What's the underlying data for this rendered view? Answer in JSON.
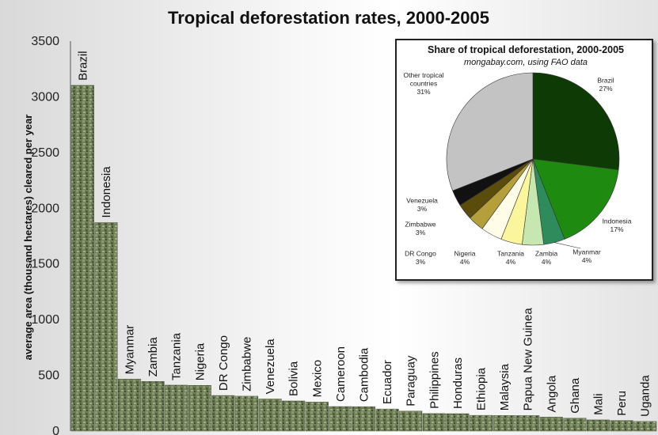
{
  "chart_data": [
    {
      "type": "bar",
      "title": "Tropical deforestation rates, 2000-2005",
      "ylabel": "average area (thousand hectares) cleared per year",
      "ylim": [
        0,
        3500
      ],
      "yticks": [
        0,
        500,
        1000,
        1500,
        2000,
        2500,
        3000,
        3500
      ],
      "grid": false,
      "categories": [
        "Brazil",
        "Indonesia",
        "Myanmar",
        "Zambia",
        "Tanzania",
        "Nigeria",
        "DR Congo",
        "Zimbabwe",
        "Venezuela",
        "Bolivia",
        "Mexico",
        "Cameroon",
        "Cambodia",
        "Ecuador",
        "Paraguay",
        "Philippines",
        "Honduras",
        "Ethiopia",
        "Malaysia",
        "Papua New Guinea",
        "Angola",
        "Ghana",
        "Mali",
        "Peru",
        "Uganda"
      ],
      "values": [
        3103,
        1871,
        466,
        445,
        412,
        410,
        319,
        313,
        288,
        270,
        260,
        220,
        219,
        198,
        179,
        157,
        156,
        141,
        140,
        139,
        125,
        115,
        100,
        94,
        86
      ]
    },
    {
      "type": "pie",
      "title": "Share of tropical deforestation, 2000-2005",
      "subtitle": "mongabay.com, using FAO data",
      "slices": [
        {
          "label": "Brazil",
          "pct_label": "27%",
          "value": 27,
          "color": "#0e3a05"
        },
        {
          "label": "Indonesia",
          "pct_label": "17%",
          "value": 17,
          "color": "#1f8a10"
        },
        {
          "label": "Myanmar",
          "pct_label": "4%",
          "value": 4,
          "color": "#2e8b5c"
        },
        {
          "label": "Zambia",
          "pct_label": "4%",
          "value": 4,
          "color": "#c6e8b0"
        },
        {
          "label": "Tanzania",
          "pct_label": "4%",
          "value": 4,
          "color": "#fbf59b"
        },
        {
          "label": "Nigeria",
          "pct_label": "4%",
          "value": 4,
          "color": "#fffce8"
        },
        {
          "label": "DR Congo",
          "pct_label": "3%",
          "value": 3,
          "color": "#b59f3a"
        },
        {
          "label": "Zimbabwe",
          "pct_label": "3%",
          "value": 3,
          "color": "#5a4d0c"
        },
        {
          "label": "Venezuela",
          "pct_label": "3%",
          "value": 3,
          "color": "#111111"
        },
        {
          "label": "Other tropical countries",
          "pct_label": "31%",
          "value": 31,
          "color": "#c3c3c3"
        }
      ]
    }
  ]
}
